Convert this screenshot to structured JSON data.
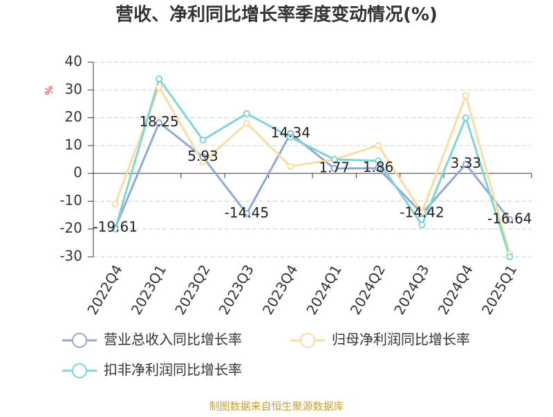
{
  "chart_data": {
    "type": "line",
    "title": "营收、净利同比增长率季度变动情况(%)",
    "y_label": "%",
    "categories": [
      "2022Q4",
      "2023Q1",
      "2023Q2",
      "2023Q3",
      "2023Q4",
      "2024Q1",
      "2024Q2",
      "2024Q3",
      "2024Q4",
      "2025Q1"
    ],
    "series": [
      {
        "name": "营业总收入同比增长率",
        "color": "#8fa8d8",
        "values": [
          -19.61,
          18.25,
          5.93,
          -14.45,
          14.34,
          1.77,
          1.86,
          -14.42,
          3.33,
          -16.64
        ],
        "show_labels": true
      },
      {
        "name": "归母净利润同比增长率",
        "color": "#f9dca0",
        "values": [
          -11,
          31,
          4,
          18,
          2.5,
          5,
          10,
          -14,
          28,
          -29
        ],
        "show_labels": false
      },
      {
        "name": "扣非净利润同比增长率",
        "color": "#7fd4d4",
        "values": [
          -20,
          34,
          12,
          21.5,
          13,
          5,
          4.5,
          -18.5,
          20,
          -30
        ],
        "show_labels": false
      }
    ],
    "ylim": [
      -30,
      40
    ],
    "yticks": [
      40,
      30,
      20,
      10,
      0,
      -10,
      -20,
      -30
    ],
    "grid": true,
    "source": "制图数据来自恒生聚源数据库"
  }
}
